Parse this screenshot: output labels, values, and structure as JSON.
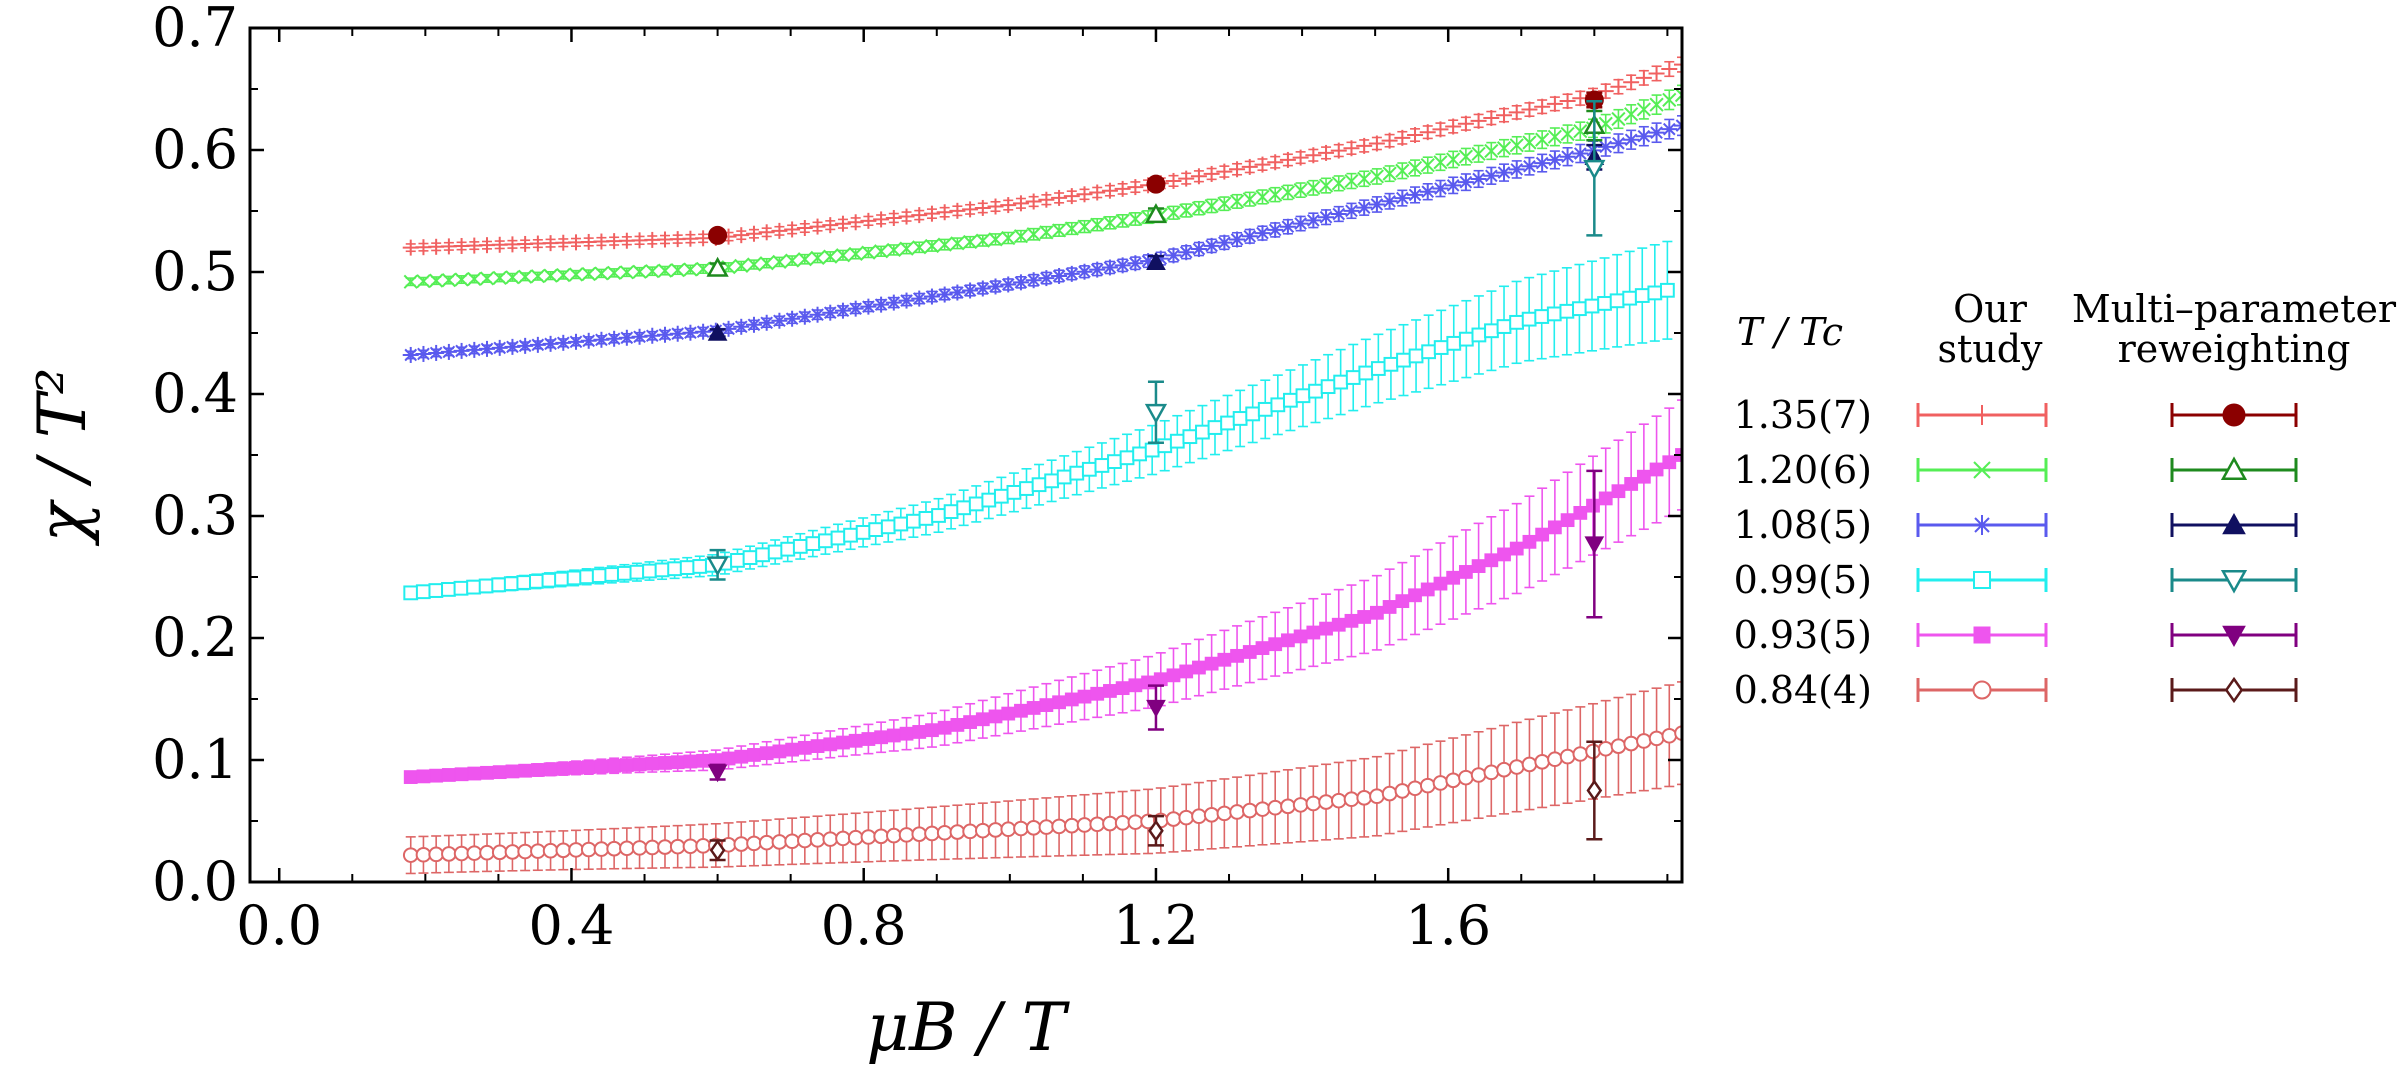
{
  "chart_data": {
    "type": "line",
    "xlabel": "μB / T",
    "ylabel": "χ / T²",
    "xlim": [
      -0.04,
      1.92
    ],
    "ylim": [
      0.0,
      0.7
    ],
    "xticks": [
      "0.0",
      "0.4",
      "0.8",
      "1.2",
      "1.6"
    ],
    "xtick_values": [
      0.0,
      0.4,
      0.8,
      1.2,
      1.6
    ],
    "yticks": [
      "0.0",
      "0.1",
      "0.2",
      "0.3",
      "0.4",
      "0.5",
      "0.6",
      "0.7"
    ],
    "ytick_values": [
      0.0,
      0.1,
      0.2,
      0.3,
      0.4,
      0.5,
      0.6,
      0.7
    ],
    "legend": {
      "header_temperature": "T / Tc",
      "header_study_line1": "Our",
      "header_study_line2": "study",
      "header_reweighting_line1": "Multi–parameter",
      "header_reweighting_line2": "reweighting",
      "placement": "right"
    },
    "series": [
      {
        "name": "1.35(7)",
        "color": "#f06060",
        "marker": "plus",
        "curve": {
          "x_start": 0.18,
          "x_end": 1.92,
          "points": [
            [
              0.18,
              0.52
            ],
            [
              0.6,
              0.528
            ],
            [
              1.0,
              0.555
            ],
            [
              1.2,
              0.572
            ],
            [
              1.5,
              0.605
            ],
            [
              1.8,
              0.645
            ],
            [
              1.92,
              0.67
            ]
          ],
          "err_start": 0.003,
          "err_end": 0.006
        },
        "reweighting": {
          "color": "#8b0000",
          "marker": "filled-circle",
          "points": [
            [
              0.6,
              0.53,
              0.003
            ],
            [
              1.2,
              0.572,
              0.004
            ],
            [
              1.8,
              0.641,
              0.006
            ]
          ]
        }
      },
      {
        "name": "1.20(6)",
        "color": "#55ee55",
        "marker": "cross",
        "curve": {
          "x_start": 0.18,
          "x_end": 1.92,
          "points": [
            [
              0.18,
              0.492
            ],
            [
              0.6,
              0.503
            ],
            [
              1.0,
              0.528
            ],
            [
              1.2,
              0.546
            ],
            [
              1.5,
              0.578
            ],
            [
              1.8,
              0.618
            ],
            [
              1.92,
              0.645
            ]
          ],
          "err_start": 0.003,
          "err_end": 0.008
        },
        "reweighting": {
          "color": "#1e8a1e",
          "marker": "open-triangle-up",
          "points": [
            [
              0.6,
              0.503,
              0.004
            ],
            [
              1.2,
              0.547,
              0.005
            ],
            [
              1.8,
              0.62,
              0.012
            ]
          ]
        }
      },
      {
        "name": "1.08(5)",
        "color": "#5a5aee",
        "marker": "asterisk",
        "curve": {
          "x_start": 0.18,
          "x_end": 1.92,
          "points": [
            [
              0.18,
              0.432
            ],
            [
              0.6,
              0.452
            ],
            [
              1.0,
              0.49
            ],
            [
              1.2,
              0.51
            ],
            [
              1.5,
              0.555
            ],
            [
              1.8,
              0.6
            ],
            [
              1.92,
              0.62
            ]
          ],
          "err_start": 0.003,
          "err_end": 0.008
        },
        "reweighting": {
          "color": "#101060",
          "marker": "filled-triangle-up",
          "points": [
            [
              0.6,
              0.45,
              0.003
            ],
            [
              1.2,
              0.508,
              0.005
            ],
            [
              1.8,
              0.594,
              0.01
            ]
          ]
        }
      },
      {
        "name": "0.99(5)",
        "color": "#22eeee",
        "marker": "open-square",
        "curve": {
          "x_start": 0.18,
          "x_end": 1.9,
          "points": [
            [
              0.18,
              0.237
            ],
            [
              0.6,
              0.26
            ],
            [
              0.9,
              0.3
            ],
            [
              1.2,
              0.355
            ],
            [
              1.5,
              0.42
            ],
            [
              1.7,
              0.46
            ],
            [
              1.9,
              0.485
            ]
          ],
          "err_start": 0.005,
          "err_end": 0.04
        },
        "reweighting": {
          "color": "#1a8a8a",
          "marker": "open-triangle-down",
          "points": [
            [
              0.6,
              0.26,
              0.012
            ],
            [
              1.2,
              0.385,
              0.025
            ],
            [
              1.8,
              0.585,
              0.055
            ]
          ]
        }
      },
      {
        "name": "0.93(5)",
        "color": "#ee55ee",
        "marker": "filled-square",
        "curve": {
          "x_start": 0.18,
          "x_end": 1.92,
          "points": [
            [
              0.18,
              0.086
            ],
            [
              0.6,
              0.1
            ],
            [
              0.9,
              0.125
            ],
            [
              1.2,
              0.165
            ],
            [
              1.5,
              0.22
            ],
            [
              1.7,
              0.275
            ],
            [
              1.92,
              0.35
            ]
          ],
          "err_start": 0.004,
          "err_end": 0.045
        },
        "reweighting": {
          "color": "#800080",
          "marker": "filled-triangle-down",
          "points": [
            [
              0.6,
              0.09,
              0.006
            ],
            [
              1.2,
              0.143,
              0.018
            ],
            [
              1.8,
              0.277,
              0.06
            ]
          ]
        }
      },
      {
        "name": "0.84(4)",
        "color": "#dd6666",
        "marker": "open-circle",
        "curve": {
          "x_start": 0.18,
          "x_end": 1.92,
          "points": [
            [
              0.18,
              0.022
            ],
            [
              0.6,
              0.03
            ],
            [
              0.9,
              0.04
            ],
            [
              1.2,
              0.05
            ],
            [
              1.5,
              0.07
            ],
            [
              1.7,
              0.095
            ],
            [
              1.92,
              0.122
            ]
          ],
          "err_start": 0.015,
          "err_end": 0.042
        },
        "reweighting": {
          "color": "#5a1a1a",
          "marker": "open-diamond",
          "points": [
            [
              0.6,
              0.026,
              0.008
            ],
            [
              1.2,
              0.042,
              0.012
            ],
            [
              1.8,
              0.075,
              0.04
            ]
          ]
        }
      }
    ]
  }
}
